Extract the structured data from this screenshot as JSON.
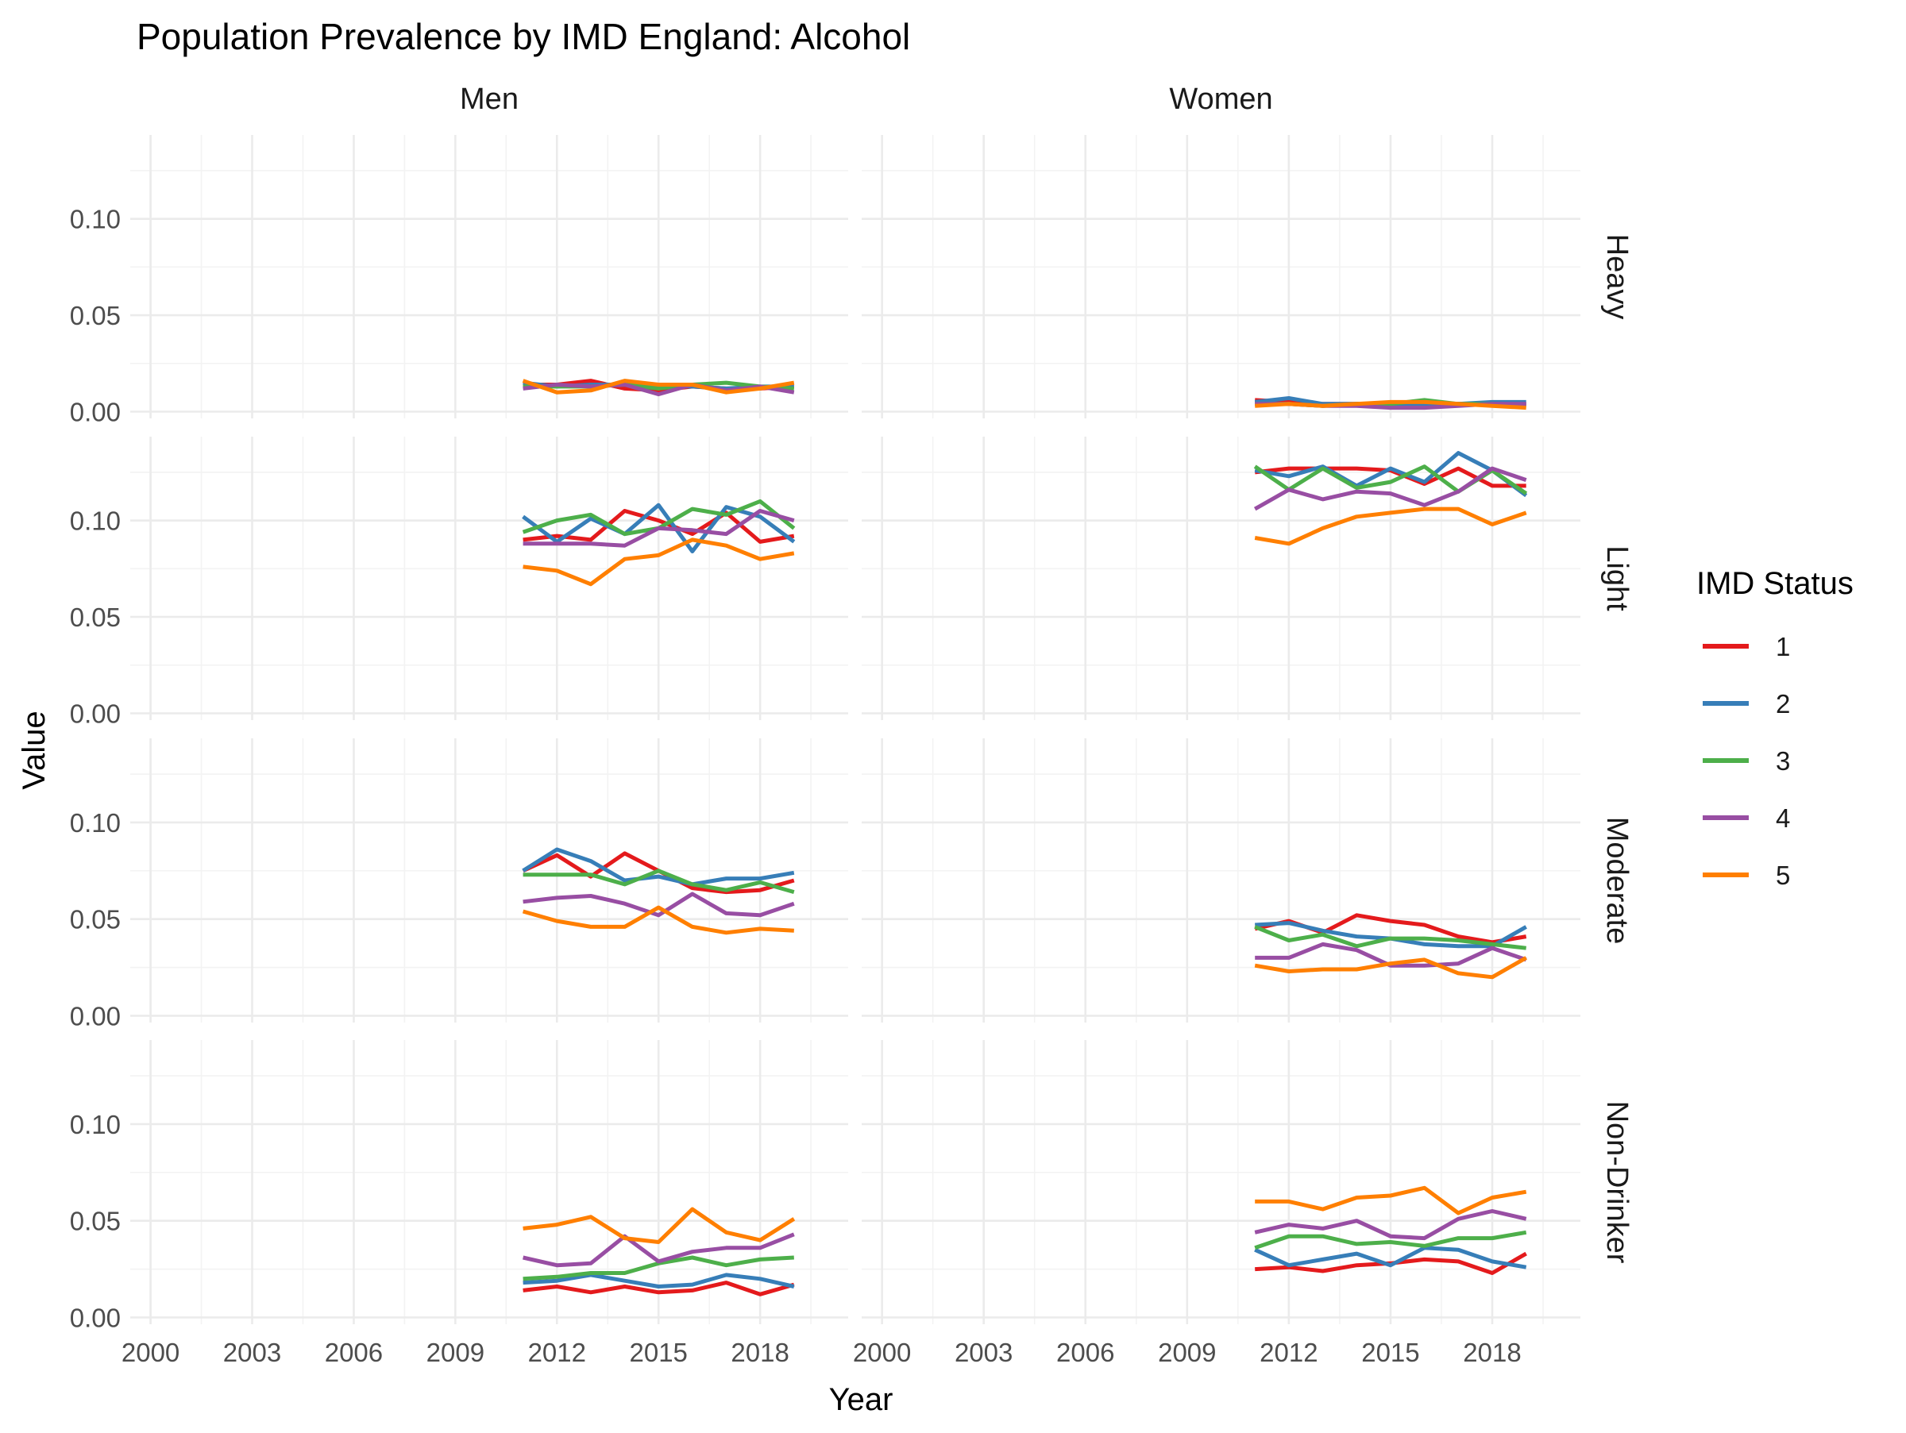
{
  "chart_data": {
    "type": "line",
    "title": "Population Prevalence by IMD England: Alcohol",
    "xlabel": "Year",
    "ylabel": "Value",
    "facet_columns": [
      "Men",
      "Women"
    ],
    "facet_rows": [
      "Heavy",
      "Light",
      "Moderate",
      "Non-Drinker"
    ],
    "xlim": [
      1999.4,
      2020.6
    ],
    "ylim": [
      -0.0035,
      0.1435
    ],
    "x_ticks": [
      2000,
      2003,
      2006,
      2009,
      2012,
      2015,
      2018
    ],
    "x_tick_labels": [
      "2000",
      "2003",
      "2006",
      "2009",
      "2012",
      "2015",
      "2018"
    ],
    "y_ticks": [
      0,
      0.05,
      0.1
    ],
    "y_tick_labels": [
      "0.00",
      "0.05",
      "0.10"
    ],
    "grid": true,
    "legend": {
      "title": "IMD Status",
      "position": "right",
      "entries": [
        "1",
        "2",
        "3",
        "4",
        "5"
      ],
      "colors": [
        "#e41a1c",
        "#377eb8",
        "#4daf4a",
        "#984ea3",
        "#ff7f00"
      ]
    },
    "x": [
      2011,
      2012,
      2013,
      2014,
      2015,
      2016,
      2017,
      2018,
      2019
    ],
    "panels": [
      {
        "col": "Men",
        "row": "Heavy",
        "series": [
          {
            "name": "1",
            "values": [
              0.014,
              0.014,
              0.016,
              0.012,
              0.011,
              0.013,
              0.012,
              0.012,
              0.013
            ]
          },
          {
            "name": "2",
            "values": [
              0.015,
              0.013,
              0.014,
              0.014,
              0.013,
              0.013,
              0.012,
              0.013,
              0.013
            ]
          },
          {
            "name": "3",
            "values": [
              0.013,
              0.013,
              0.013,
              0.014,
              0.012,
              0.014,
              0.015,
              0.013,
              0.012
            ]
          },
          {
            "name": "4",
            "values": [
              0.012,
              0.014,
              0.013,
              0.014,
              0.009,
              0.014,
              0.011,
              0.013,
              0.01
            ]
          },
          {
            "name": "5",
            "values": [
              0.016,
              0.01,
              0.011,
              0.016,
              0.014,
              0.014,
              0.01,
              0.012,
              0.015
            ]
          }
        ]
      },
      {
        "col": "Women",
        "row": "Heavy",
        "series": [
          {
            "name": "1",
            "values": [
              0.006,
              0.005,
              0.004,
              0.004,
              0.004,
              0.004,
              0.004,
              0.004,
              0.004
            ]
          },
          {
            "name": "2",
            "values": [
              0.005,
              0.007,
              0.004,
              0.004,
              0.004,
              0.004,
              0.004,
              0.005,
              0.005
            ]
          },
          {
            "name": "3",
            "values": [
              0.004,
              0.004,
              0.003,
              0.004,
              0.004,
              0.006,
              0.004,
              0.004,
              0.003
            ]
          },
          {
            "name": "4",
            "values": [
              0.004,
              0.004,
              0.003,
              0.003,
              0.002,
              0.002,
              0.003,
              0.004,
              0.004
            ]
          },
          {
            "name": "5",
            "values": [
              0.003,
              0.004,
              0.003,
              0.004,
              0.005,
              0.005,
              0.004,
              0.003,
              0.002
            ]
          }
        ]
      },
      {
        "col": "Men",
        "row": "Light",
        "series": [
          {
            "name": "1",
            "values": [
              0.09,
              0.092,
              0.09,
              0.105,
              0.1,
              0.093,
              0.104,
              0.089,
              0.092
            ]
          },
          {
            "name": "2",
            "values": [
              0.102,
              0.089,
              0.101,
              0.093,
              0.108,
              0.084,
              0.107,
              0.102,
              0.089
            ]
          },
          {
            "name": "3",
            "values": [
              0.094,
              0.1,
              0.103,
              0.093,
              0.096,
              0.106,
              0.103,
              0.11,
              0.096
            ]
          },
          {
            "name": "4",
            "values": [
              0.088,
              0.088,
              0.088,
              0.087,
              0.096,
              0.095,
              0.093,
              0.105,
              0.1
            ]
          },
          {
            "name": "5",
            "values": [
              0.076,
              0.074,
              0.067,
              0.08,
              0.082,
              0.09,
              0.087,
              0.08,
              0.083
            ]
          }
        ]
      },
      {
        "col": "Women",
        "row": "Light",
        "series": [
          {
            "name": "1",
            "values": [
              0.125,
              0.127,
              0.127,
              0.127,
              0.126,
              0.119,
              0.127,
              0.118,
              0.118
            ]
          },
          {
            "name": "2",
            "values": [
              0.126,
              0.123,
              0.128,
              0.118,
              0.127,
              0.12,
              0.135,
              0.126,
              0.113
            ]
          },
          {
            "name": "3",
            "values": [
              0.128,
              0.116,
              0.127,
              0.117,
              0.12,
              0.128,
              0.115,
              0.126,
              0.114
            ]
          },
          {
            "name": "4",
            "values": [
              0.106,
              0.116,
              0.111,
              0.115,
              0.114,
              0.108,
              0.115,
              0.127,
              0.121
            ]
          },
          {
            "name": "5",
            "values": [
              0.091,
              0.088,
              0.096,
              0.102,
              0.104,
              0.106,
              0.106,
              0.098,
              0.104
            ]
          }
        ]
      },
      {
        "col": "Men",
        "row": "Moderate",
        "series": [
          {
            "name": "1",
            "values": [
              0.075,
              0.083,
              0.072,
              0.084,
              0.075,
              0.066,
              0.064,
              0.065,
              0.07
            ]
          },
          {
            "name": "2",
            "values": [
              0.075,
              0.086,
              0.08,
              0.07,
              0.072,
              0.068,
              0.071,
              0.071,
              0.074
            ]
          },
          {
            "name": "3",
            "values": [
              0.073,
              0.073,
              0.073,
              0.068,
              0.075,
              0.068,
              0.065,
              0.069,
              0.064
            ]
          },
          {
            "name": "4",
            "values": [
              0.059,
              0.061,
              0.062,
              0.058,
              0.052,
              0.063,
              0.053,
              0.052,
              0.058
            ]
          },
          {
            "name": "5",
            "values": [
              0.054,
              0.049,
              0.046,
              0.046,
              0.056,
              0.046,
              0.043,
              0.045,
              0.044
            ]
          }
        ]
      },
      {
        "col": "Women",
        "row": "Moderate",
        "series": [
          {
            "name": "1",
            "values": [
              0.045,
              0.049,
              0.043,
              0.052,
              0.049,
              0.047,
              0.041,
              0.038,
              0.041
            ]
          },
          {
            "name": "2",
            "values": [
              0.047,
              0.048,
              0.044,
              0.041,
              0.04,
              0.037,
              0.036,
              0.036,
              0.046
            ]
          },
          {
            "name": "3",
            "values": [
              0.046,
              0.039,
              0.042,
              0.036,
              0.04,
              0.04,
              0.039,
              0.037,
              0.035
            ]
          },
          {
            "name": "4",
            "values": [
              0.03,
              0.03,
              0.037,
              0.034,
              0.026,
              0.026,
              0.027,
              0.035,
              0.029
            ]
          },
          {
            "name": "5",
            "values": [
              0.026,
              0.023,
              0.024,
              0.024,
              0.027,
              0.029,
              0.022,
              0.02,
              0.03
            ]
          }
        ]
      },
      {
        "col": "Men",
        "row": "Non-Drinker",
        "series": [
          {
            "name": "1",
            "values": [
              0.014,
              0.016,
              0.013,
              0.016,
              0.013,
              0.014,
              0.018,
              0.012,
              0.017
            ]
          },
          {
            "name": "2",
            "values": [
              0.018,
              0.019,
              0.022,
              0.019,
              0.016,
              0.017,
              0.022,
              0.02,
              0.016
            ]
          },
          {
            "name": "3",
            "values": [
              0.02,
              0.021,
              0.023,
              0.023,
              0.028,
              0.031,
              0.027,
              0.03,
              0.031
            ]
          },
          {
            "name": "4",
            "values": [
              0.031,
              0.027,
              0.028,
              0.042,
              0.029,
              0.034,
              0.036,
              0.036,
              0.043
            ]
          },
          {
            "name": "5",
            "values": [
              0.046,
              0.048,
              0.052,
              0.041,
              0.039,
              0.056,
              0.044,
              0.04,
              0.051
            ]
          }
        ]
      },
      {
        "col": "Women",
        "row": "Non-Drinker",
        "series": [
          {
            "name": "1",
            "values": [
              0.025,
              0.026,
              0.024,
              0.027,
              0.028,
              0.03,
              0.029,
              0.023,
              0.033
            ]
          },
          {
            "name": "2",
            "values": [
              0.035,
              0.027,
              0.03,
              0.033,
              0.027,
              0.036,
              0.035,
              0.029,
              0.026
            ]
          },
          {
            "name": "3",
            "values": [
              0.036,
              0.042,
              0.042,
              0.038,
              0.039,
              0.037,
              0.041,
              0.041,
              0.044
            ]
          },
          {
            "name": "4",
            "values": [
              0.044,
              0.048,
              0.046,
              0.05,
              0.042,
              0.041,
              0.051,
              0.055,
              0.051
            ]
          },
          {
            "name": "5",
            "values": [
              0.06,
              0.06,
              0.056,
              0.062,
              0.063,
              0.067,
              0.054,
              0.062,
              0.065
            ]
          }
        ]
      }
    ]
  }
}
